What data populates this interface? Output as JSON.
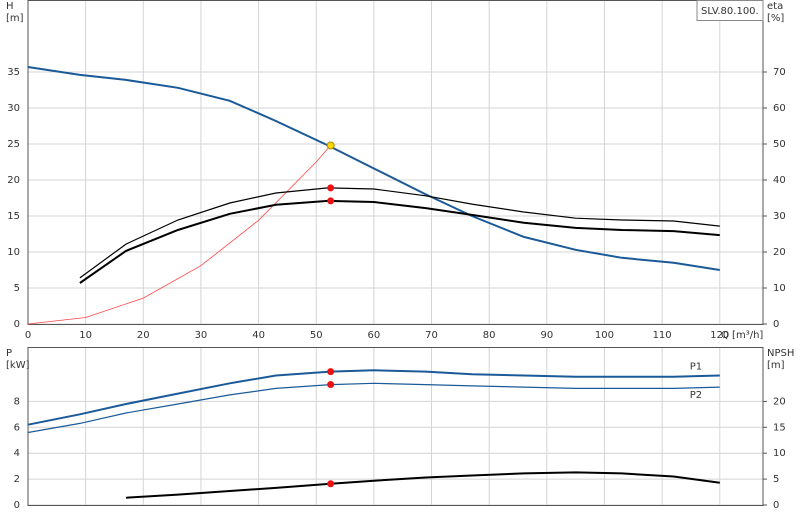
{
  "chart_data": [
    {
      "type": "line",
      "y_label": [
        "H",
        "[m]"
      ],
      "y2_label": [
        "eta",
        "[%]"
      ],
      "x_label": "Q [m³/h]",
      "tag": "SLV.80.100.",
      "xlim": [
        0,
        127.5
      ],
      "xticks": [
        0,
        10,
        20,
        30,
        40,
        50,
        60,
        70,
        80,
        90,
        100,
        110,
        120
      ],
      "show_xtick_labels": true,
      "ylim": [
        0,
        45
      ],
      "yticks": [
        0,
        5,
        10,
        15,
        20,
        25,
        30,
        35
      ],
      "y2lim": [
        0,
        90
      ],
      "y2ticks": [
        0,
        10,
        20,
        30,
        40,
        50,
        60,
        70
      ],
      "grid": true,
      "series": [
        {
          "color": "#ff4444",
          "line_width": 0.8,
          "x": [
            0,
            10,
            20,
            30,
            40,
            50,
            52.5
          ],
          "values": [
            0,
            0.9,
            3.6,
            8.1,
            14.4,
            22.5,
            24.8
          ]
        },
        {
          "color": "#1b5a98",
          "line_width": 2,
          "x": [
            0,
            9,
            17,
            26,
            35,
            43,
            52,
            60,
            69,
            77,
            86,
            95,
            103,
            112,
            120
          ],
          "values": [
            35.7,
            34.6,
            33.9,
            32.8,
            31.0,
            28.2,
            24.8,
            21.6,
            18.0,
            15.0,
            12.1,
            10.3,
            9.2,
            8.5,
            7.5
          ]
        },
        {
          "color": "#000000",
          "line_width": 1.2,
          "axis": "y2",
          "x": [
            9,
            17,
            26,
            35,
            43,
            52,
            60,
            69,
            77,
            86,
            95,
            103,
            112,
            120
          ],
          "values": [
            12.8,
            22.2,
            28.9,
            33.6,
            36.4,
            37.8,
            37.5,
            35.6,
            33.3,
            31.1,
            29.4,
            28.9,
            28.6,
            27.2
          ]
        },
        {
          "color": "#000000",
          "line_width": 2,
          "axis": "y2",
          "x": [
            9,
            17,
            26,
            35,
            43,
            52,
            60,
            69,
            77,
            86,
            95,
            103,
            112,
            120
          ],
          "values": [
            11.4,
            20.3,
            26.1,
            30.6,
            33.1,
            34.2,
            33.9,
            32.2,
            30.3,
            28.1,
            26.7,
            26.1,
            25.8,
            24.7
          ]
        },
        {
          "kind": "point",
          "color": "#ffd700",
          "x": [
            52.5
          ],
          "values": [
            24.8
          ]
        },
        {
          "kind": "point",
          "color": "#ee1111",
          "axis": "y2",
          "x": [
            52.5
          ],
          "values": [
            37.8
          ]
        },
        {
          "kind": "point",
          "color": "#ee1111",
          "axis": "y2",
          "x": [
            52.5
          ],
          "values": [
            34.2
          ]
        }
      ]
    },
    {
      "type": "line",
      "y_label": [
        "P",
        "[kW]"
      ],
      "y2_label": [
        "NPSH",
        "[m]"
      ],
      "xlim": [
        0,
        127.5
      ],
      "xticks": [
        0,
        10,
        20,
        30,
        40,
        50,
        60,
        70,
        80,
        90,
        100,
        110,
        120
      ],
      "show_xtick_labels": false,
      "ylim": [
        0,
        12.2
      ],
      "yticks": [
        0,
        2,
        4,
        6,
        8
      ],
      "y2lim": [
        0,
        30.5
      ],
      "y2ticks": [
        0,
        5,
        10,
        15,
        20
      ],
      "grid": true,
      "series": [
        {
          "name": "P1",
          "label_side": "above",
          "color": "#1b5a98",
          "line_width": 2,
          "x": [
            0,
            9,
            17,
            26,
            35,
            43,
            52.5,
            60,
            69,
            77,
            86,
            95,
            103,
            112,
            120
          ],
          "values": [
            6.2,
            7.0,
            7.8,
            8.6,
            9.4,
            10.0,
            10.3,
            10.4,
            10.3,
            10.1,
            10.0,
            9.9,
            9.9,
            9.9,
            10.0
          ]
        },
        {
          "name": "P2",
          "label_side": "below",
          "color": "#1b5a98",
          "line_width": 1.2,
          "x": [
            0,
            9,
            17,
            26,
            35,
            43,
            52.5,
            60,
            69,
            77,
            86,
            95,
            103,
            112,
            120
          ],
          "values": [
            5.6,
            6.3,
            7.1,
            7.8,
            8.5,
            9.0,
            9.3,
            9.4,
            9.3,
            9.2,
            9.1,
            9.0,
            9.0,
            9.0,
            9.1
          ]
        },
        {
          "color": "#000000",
          "line_width": 2,
          "axis": "y2",
          "x": [
            17,
            26,
            35,
            43,
            52.5,
            60,
            69,
            77,
            86,
            95,
            103,
            112,
            120
          ],
          "values": [
            1.4,
            2.0,
            2.7,
            3.3,
            4.1,
            4.7,
            5.3,
            5.7,
            6.1,
            6.3,
            6.1,
            5.5,
            4.3
          ]
        },
        {
          "kind": "point",
          "color": "#ee1111",
          "x": [
            52.5
          ],
          "values": [
            10.3
          ]
        },
        {
          "kind": "point",
          "color": "#ee1111",
          "x": [
            52.5
          ],
          "values": [
            9.3
          ]
        },
        {
          "kind": "point",
          "color": "#ee1111",
          "axis": "y2",
          "x": [
            52.5
          ],
          "values": [
            4.1
          ]
        }
      ]
    }
  ]
}
